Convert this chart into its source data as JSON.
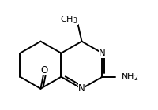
{
  "bg_color": "#ffffff",
  "bond_color": "#000000",
  "lw": 1.4,
  "fs": 8.5,
  "xlim": [
    -0.55,
    0.85
  ],
  "ylim": [
    -0.55,
    0.65
  ],
  "ring_r": 0.26
}
